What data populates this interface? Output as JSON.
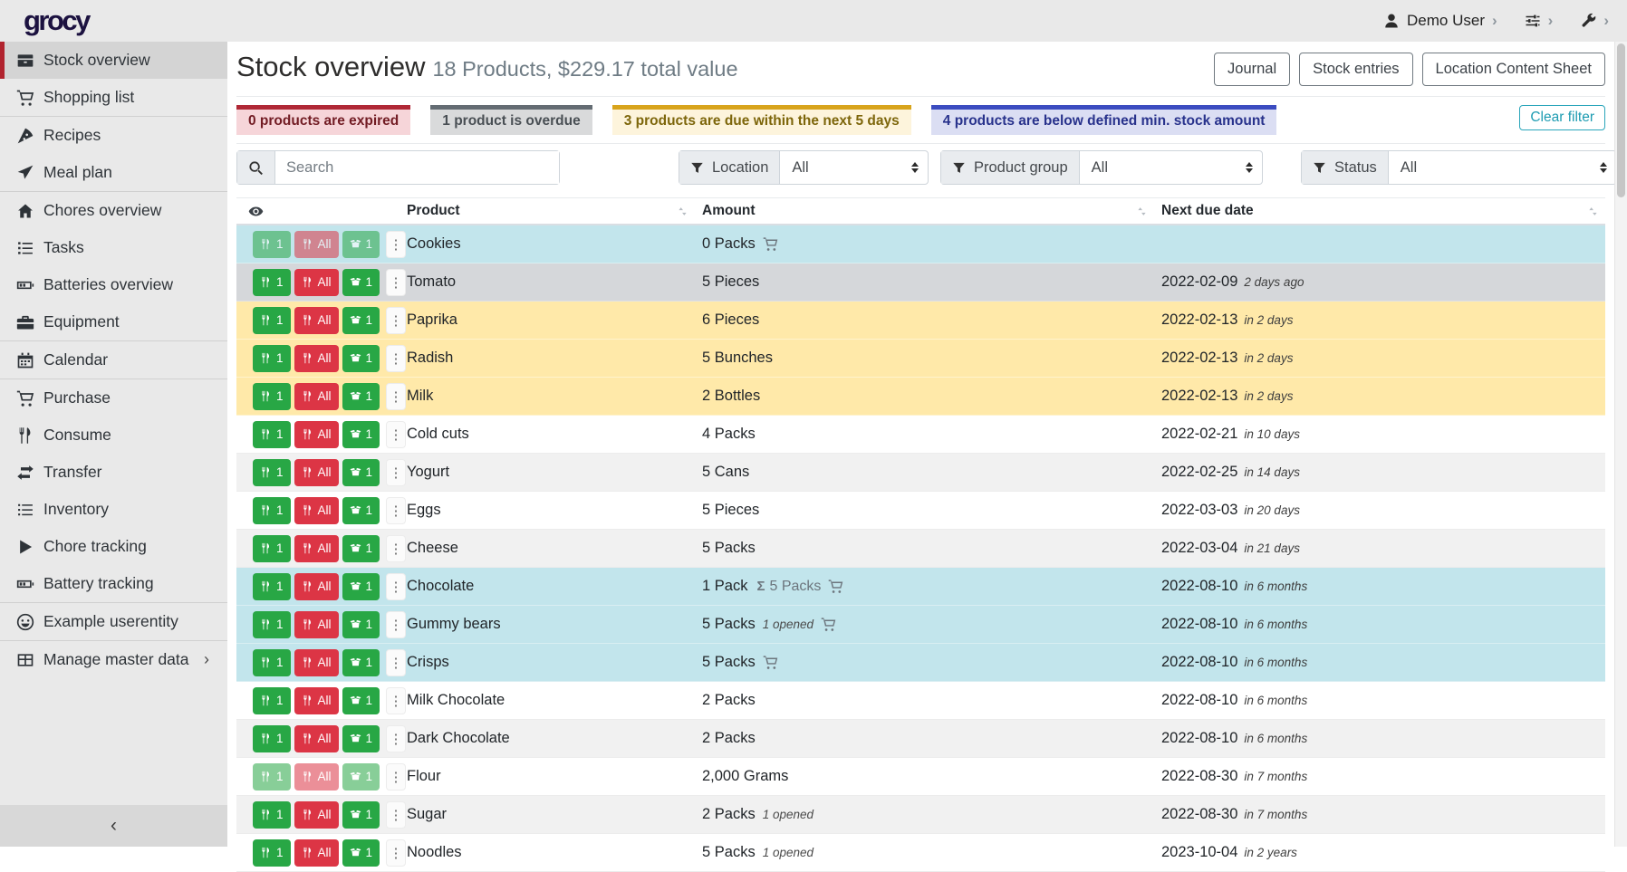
{
  "navbar": {
    "logo": "grocy",
    "user": "Demo User"
  },
  "icons": {
    "kebab_menu": "⋮",
    "collapse_chevron": "‹",
    "submenu_chevron": "›",
    "nav_chevron": "›",
    "sigma": "Σ"
  },
  "sidebar": {
    "items": [
      {
        "id": "stock-overview",
        "label": "Stock overview",
        "icon": "box",
        "active": true,
        "divider_after": false,
        "submenu": false
      },
      {
        "id": "shopping-list",
        "label": "Shopping list",
        "icon": "cart",
        "active": false,
        "divider_after": true,
        "submenu": false
      },
      {
        "id": "recipes",
        "label": "Recipes",
        "icon": "pizza",
        "active": false,
        "divider_after": false,
        "submenu": false
      },
      {
        "id": "meal-plan",
        "label": "Meal plan",
        "icon": "plane",
        "active": false,
        "divider_after": true,
        "submenu": false
      },
      {
        "id": "chores-overview",
        "label": "Chores overview",
        "icon": "home",
        "active": false,
        "divider_after": false,
        "submenu": false
      },
      {
        "id": "tasks",
        "label": "Tasks",
        "icon": "tasks",
        "active": false,
        "divider_after": false,
        "submenu": false
      },
      {
        "id": "batteries-overview",
        "label": "Batteries overview",
        "icon": "battery",
        "active": false,
        "divider_after": false,
        "submenu": false
      },
      {
        "id": "equipment",
        "label": "Equipment",
        "icon": "briefcase",
        "active": false,
        "divider_after": true,
        "submenu": false
      },
      {
        "id": "calendar",
        "label": "Calendar",
        "icon": "calendar",
        "active": false,
        "divider_after": true,
        "submenu": false
      },
      {
        "id": "purchase",
        "label": "Purchase",
        "icon": "cart",
        "active": false,
        "divider_after": false,
        "submenu": false
      },
      {
        "id": "consume",
        "label": "Consume",
        "icon": "utensils",
        "active": false,
        "divider_after": false,
        "submenu": false
      },
      {
        "id": "transfer",
        "label": "Transfer",
        "icon": "exchange",
        "active": false,
        "divider_after": false,
        "submenu": false
      },
      {
        "id": "inventory",
        "label": "Inventory",
        "icon": "list",
        "active": false,
        "divider_after": false,
        "submenu": false
      },
      {
        "id": "chore-tracking",
        "label": "Chore tracking",
        "icon": "play",
        "active": false,
        "divider_after": false,
        "submenu": false
      },
      {
        "id": "battery-tracking",
        "label": "Battery tracking",
        "icon": "battery",
        "active": false,
        "divider_after": true,
        "submenu": false
      },
      {
        "id": "example-userentity",
        "label": "Example userentity",
        "icon": "smiley",
        "active": false,
        "divider_after": true,
        "submenu": false
      },
      {
        "id": "manage-master-data",
        "label": "Manage master data",
        "icon": "table",
        "active": false,
        "divider_after": false,
        "submenu": true
      }
    ]
  },
  "header": {
    "title": "Stock overview",
    "subtitle": "18 Products, $229.17 total value",
    "buttons": [
      {
        "id": "journal",
        "label": "Journal"
      },
      {
        "id": "stock-entries",
        "label": "Stock entries"
      },
      {
        "id": "location-content-sheet",
        "label": "Location Content Sheet"
      }
    ]
  },
  "chips": [
    {
      "type": "expired",
      "label": "0 products are expired"
    },
    {
      "type": "overdue",
      "label": "1 product is overdue"
    },
    {
      "type": "duesoon",
      "label": "3 products are due within the next 5 days"
    },
    {
      "type": "belowmin",
      "label": "4 products are below defined min. stock amount"
    }
  ],
  "clear_filter_label": "Clear filter",
  "filters": {
    "search_placeholder": "Search",
    "selects": [
      {
        "id": "location",
        "label": "Location",
        "value": "All"
      },
      {
        "id": "product-group",
        "label": "Product group",
        "value": "All"
      },
      {
        "id": "status",
        "label": "Status",
        "value": "All"
      }
    ]
  },
  "table": {
    "columns": [
      "Product",
      "Amount",
      "Next due date"
    ],
    "action_buttons": [
      {
        "label": "1",
        "color": "green",
        "icon": "utensils"
      },
      {
        "label": "All",
        "color": "red",
        "icon": "utensils"
      },
      {
        "label": "1",
        "color": "green",
        "icon": "box-open"
      }
    ],
    "rows": [
      {
        "product": "Cookies",
        "amount": "0 Packs",
        "sum": null,
        "opened": null,
        "cart": true,
        "date": null,
        "due": null,
        "style": "belowmin",
        "muted": true
      },
      {
        "product": "Tomato",
        "amount": "5 Pieces",
        "sum": null,
        "opened": null,
        "cart": false,
        "date": "2022-02-09",
        "due": "2 days ago",
        "style": "overdue",
        "muted": false
      },
      {
        "product": "Paprika",
        "amount": "6 Pieces",
        "sum": null,
        "opened": null,
        "cart": false,
        "date": "2022-02-13",
        "due": "in 2 days",
        "style": "duesoon",
        "muted": false
      },
      {
        "product": "Radish",
        "amount": "5 Bunches",
        "sum": null,
        "opened": null,
        "cart": false,
        "date": "2022-02-13",
        "due": "in 2 days",
        "style": "duesoon",
        "muted": false
      },
      {
        "product": "Milk",
        "amount": "2 Bottles",
        "sum": null,
        "opened": null,
        "cart": false,
        "date": "2022-02-13",
        "due": "in 2 days",
        "style": "duesoon",
        "muted": false
      },
      {
        "product": "Cold cuts",
        "amount": "4 Packs",
        "sum": null,
        "opened": null,
        "cart": false,
        "date": "2022-02-21",
        "due": "in 10 days",
        "style": "plain",
        "muted": false
      },
      {
        "product": "Yogurt",
        "amount": "5 Cans",
        "sum": null,
        "opened": null,
        "cart": false,
        "date": "2022-02-25",
        "due": "in 14 days",
        "style": "stripe",
        "muted": false
      },
      {
        "product": "Eggs",
        "amount": "5 Pieces",
        "sum": null,
        "opened": null,
        "cart": false,
        "date": "2022-03-03",
        "due": "in 20 days",
        "style": "plain",
        "muted": false
      },
      {
        "product": "Cheese",
        "amount": "5 Packs",
        "sum": null,
        "opened": null,
        "cart": false,
        "date": "2022-03-04",
        "due": "in 21 days",
        "style": "stripe",
        "muted": false
      },
      {
        "product": "Chocolate",
        "amount": "1 Pack",
        "sum": "5 Packs",
        "opened": null,
        "cart": true,
        "date": "2022-08-10",
        "due": "in 6 months",
        "style": "belowmin",
        "muted": false
      },
      {
        "product": "Gummy bears",
        "amount": "5 Packs",
        "sum": null,
        "opened": "1 opened",
        "cart": true,
        "date": "2022-08-10",
        "due": "in 6 months",
        "style": "belowmin",
        "muted": false
      },
      {
        "product": "Crisps",
        "amount": "5 Packs",
        "sum": null,
        "opened": null,
        "cart": true,
        "date": "2022-08-10",
        "due": "in 6 months",
        "style": "belowmin",
        "muted": false
      },
      {
        "product": "Milk Chocolate",
        "amount": "2 Packs",
        "sum": null,
        "opened": null,
        "cart": false,
        "date": "2022-08-10",
        "due": "in 6 months",
        "style": "plain",
        "muted": false
      },
      {
        "product": "Dark Chocolate",
        "amount": "2 Packs",
        "sum": null,
        "opened": null,
        "cart": false,
        "date": "2022-08-10",
        "due": "in 6 months",
        "style": "stripe",
        "muted": false
      },
      {
        "product": "Flour",
        "amount": "2,000 Grams",
        "sum": null,
        "opened": null,
        "cart": false,
        "date": "2022-08-30",
        "due": "in 7 months",
        "style": "plain",
        "muted": true
      },
      {
        "product": "Sugar",
        "amount": "2 Packs",
        "sum": null,
        "opened": "1 opened",
        "cart": false,
        "date": "2022-08-30",
        "due": "in 7 months",
        "style": "stripe",
        "muted": false
      },
      {
        "product": "Noodles",
        "amount": "5 Packs",
        "sum": null,
        "opened": "1 opened",
        "cart": false,
        "date": "2023-10-04",
        "due": "in 2 years",
        "style": "plain",
        "muted": false
      }
    ]
  },
  "colors": {
    "accent_red": "#b1232e",
    "success": "#28a745",
    "danger": "#dc3545",
    "info_teal": "#17a2b8",
    "logo": "#1c1240",
    "row_below_min": "#c2e5ec",
    "row_overdue": "#d5d7da",
    "row_due_soon": "#ffe9a9",
    "chip_expired_bg": "#f6d5d9",
    "chip_overdue_bg": "#d9dadb",
    "chip_due_soon_bg": "#fdf4dc",
    "chip_below_min_bg": "#dbdef3"
  }
}
